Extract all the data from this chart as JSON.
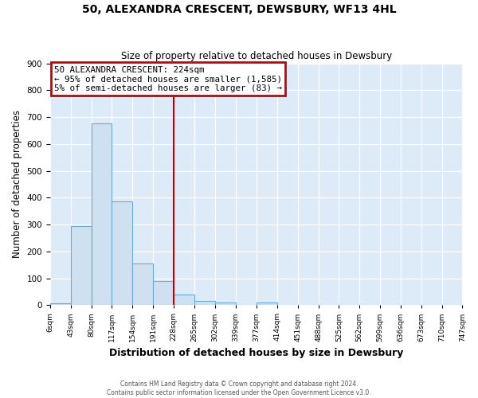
{
  "title": "50, ALEXANDRA CRESCENT, DEWSBURY, WF13 4HL",
  "subtitle": "Size of property relative to detached houses in Dewsbury",
  "xlabel": "Distribution of detached houses by size in Dewsbury",
  "ylabel": "Number of detached properties",
  "bin_edges": [
    6,
    43,
    80,
    117,
    154,
    191,
    228,
    265,
    302,
    339,
    377,
    414,
    451,
    488,
    525,
    562,
    599,
    636,
    673,
    710,
    747
  ],
  "bin_labels": [
    "6sqm",
    "43sqm",
    "80sqm",
    "117sqm",
    "154sqm",
    "191sqm",
    "228sqm",
    "265sqm",
    "302sqm",
    "339sqm",
    "377sqm",
    "414sqm",
    "451sqm",
    "488sqm",
    "525sqm",
    "562sqm",
    "599sqm",
    "636sqm",
    "673sqm",
    "710sqm",
    "747sqm"
  ],
  "counts": [
    8,
    295,
    675,
    385,
    155,
    90,
    40,
    15,
    10,
    0,
    10,
    0,
    0,
    0,
    0,
    0,
    0,
    0,
    0,
    0
  ],
  "bar_color": "#cfe0f0",
  "bar_edge_color": "#6aaad4",
  "vline_x": 228,
  "vline_color": "#cc0000",
  "ylim": [
    0,
    900
  ],
  "yticks": [
    0,
    100,
    200,
    300,
    400,
    500,
    600,
    700,
    800,
    900
  ],
  "annotation_title": "50 ALEXANDRA CRESCENT: 224sqm",
  "annotation_line1": "← 95% of detached houses are smaller (1,585)",
  "annotation_line2": "5% of semi-detached houses are larger (83) →",
  "annotation_box_color": "#cc0000",
  "footer_line1": "Contains HM Land Registry data © Crown copyright and database right 2024.",
  "footer_line2": "Contains public sector information licensed under the Open Government Licence v3.0.",
  "fig_background_color": "#ffffff",
  "plot_bg_color": "#ddeaf7"
}
